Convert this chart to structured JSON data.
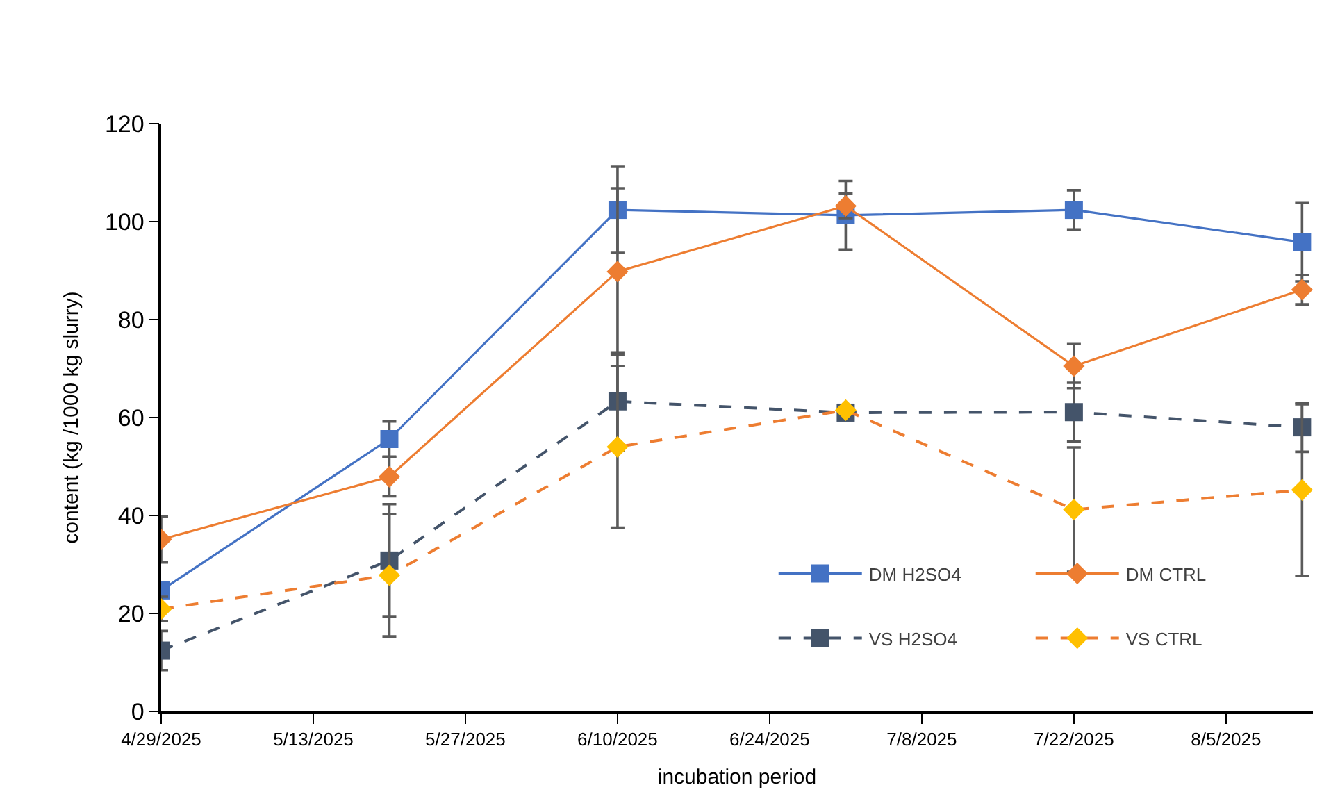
{
  "chart_data": {
    "type": "line",
    "xlabel": "incubation period",
    "ylabel": "content (kg /1000 kg slurry)",
    "x": [
      "2025-04-29",
      "2025-05-20",
      "2025-06-10",
      "2025-07-01",
      "2025-07-22",
      "2025-08-12"
    ],
    "xlim": [
      "2025-04-29",
      "2025-08-13"
    ],
    "xticks": [
      {
        "value": "2025-04-29",
        "label": "4/29/2025"
      },
      {
        "value": "2025-05-13",
        "label": "5/13/2025"
      },
      {
        "value": "2025-05-27",
        "label": "5/27/2025"
      },
      {
        "value": "2025-06-10",
        "label": "6/10/2025"
      },
      {
        "value": "2025-06-24",
        "label": "6/24/2025"
      },
      {
        "value": "2025-07-08",
        "label": "7/8/2025"
      },
      {
        "value": "2025-07-22",
        "label": "7/22/2025"
      },
      {
        "value": "2025-08-05",
        "label": "8/5/2025"
      }
    ],
    "ylim": [
      0,
      120
    ],
    "yticks": [
      0,
      20,
      40,
      60,
      80,
      100,
      120
    ],
    "legend": "bottom right",
    "series": [
      {
        "name": "DM H2SO4",
        "color": "#4472c4",
        "marker": "square",
        "line_style": "solid",
        "values": [
          24.7,
          55.6,
          102.4,
          101.3,
          102.4,
          95.8
        ],
        "errors": [
          null,
          3.6,
          8.8,
          7,
          4,
          8
        ]
      },
      {
        "name": "DM CTRL",
        "color": "#ed7d31",
        "marker": "diamond",
        "line_style": "solid",
        "values": [
          35.1,
          47.9,
          89.8,
          103.2,
          70.5,
          86.1
        ],
        "errors": [
          4.7,
          4,
          17,
          2.5,
          4.5,
          3
        ]
      },
      {
        "name": "VS H2SO4",
        "color": "#44546a",
        "marker": "square",
        "line_style": "dashed",
        "values": [
          12.4,
          30.8,
          63.3,
          61,
          61.1,
          58
        ],
        "errors": [
          4,
          11.5,
          10,
          null,
          6,
          5
        ]
      },
      {
        "name": "VS CTRL",
        "color": "#ed7d31",
        "colors": [
          "#ffc000",
          "#ffc000",
          "#ffc000",
          "#ffc000",
          "#ffc000",
          "#ffc000"
        ],
        "marker": "diamond",
        "line_style": "dashed",
        "values": [
          20.9,
          27.8,
          54,
          61.5,
          41.2,
          45.2
        ],
        "errors": [
          2.5,
          12.5,
          16.5,
          null,
          12.7,
          17.5
        ]
      }
    ]
  }
}
